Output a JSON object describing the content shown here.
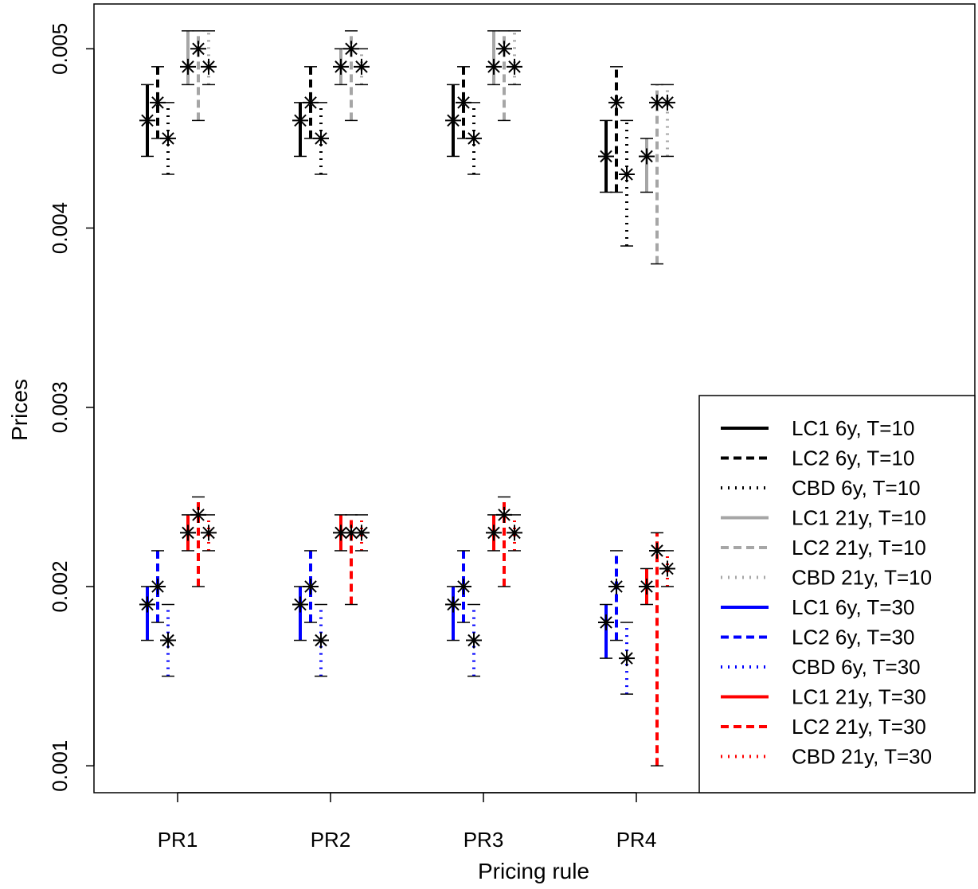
{
  "chart_data": {
    "type": "errorbar",
    "title": "",
    "xlabel": "Pricing rule",
    "ylabel": "Prices",
    "categories": [
      "PR1",
      "PR2",
      "PR3",
      "PR4"
    ],
    "ylim": [
      0.00085,
      0.00525
    ],
    "yticks": [
      {
        "value": 0.001,
        "label": "0.001"
      },
      {
        "value": 0.002,
        "label": "0.002"
      },
      {
        "value": 0.003,
        "label": "0.003"
      },
      {
        "value": 0.004,
        "label": "0.004"
      },
      {
        "value": 0.005,
        "label": "0.005"
      }
    ],
    "grid": false,
    "legend_position": "bottom-right",
    "series": [
      {
        "name": "LC1 6y, T=10",
        "color": "#000000",
        "style": "solid",
        "points": [
          {
            "low": 0.0044,
            "mid": 0.0046,
            "high": 0.0048
          },
          {
            "low": 0.0044,
            "mid": 0.0046,
            "high": 0.0047
          },
          {
            "low": 0.0044,
            "mid": 0.0046,
            "high": 0.0048
          },
          {
            "low": 0.0042,
            "mid": 0.0044,
            "high": 0.0046
          }
        ]
      },
      {
        "name": "LC2 6y, T=10",
        "color": "#000000",
        "style": "dashed",
        "points": [
          {
            "low": 0.0045,
            "mid": 0.0047,
            "high": 0.0049
          },
          {
            "low": 0.0045,
            "mid": 0.0047,
            "high": 0.0049
          },
          {
            "low": 0.0045,
            "mid": 0.0047,
            "high": 0.0049
          },
          {
            "low": 0.0042,
            "mid": 0.0047,
            "high": 0.0049
          }
        ]
      },
      {
        "name": "CBD 6y, T=10",
        "color": "#000000",
        "style": "dotted",
        "points": [
          {
            "low": 0.0043,
            "mid": 0.0045,
            "high": 0.0047
          },
          {
            "low": 0.0043,
            "mid": 0.0045,
            "high": 0.0047
          },
          {
            "low": 0.0043,
            "mid": 0.0045,
            "high": 0.0047
          },
          {
            "low": 0.0039,
            "mid": 0.0043,
            "high": 0.0046
          }
        ]
      },
      {
        "name": "LC1 21y, T=10",
        "color": "#a6a6a6",
        "style": "solid",
        "points": [
          {
            "low": 0.0048,
            "mid": 0.0049,
            "high": 0.0051
          },
          {
            "low": 0.0048,
            "mid": 0.0049,
            "high": 0.005
          },
          {
            "low": 0.0048,
            "mid": 0.0049,
            "high": 0.0051
          },
          {
            "low": 0.0042,
            "mid": 0.0044,
            "high": 0.0045
          }
        ]
      },
      {
        "name": "LC2 21y, T=10",
        "color": "#a6a6a6",
        "style": "dashed",
        "points": [
          {
            "low": 0.0046,
            "mid": 0.005,
            "high": 0.0051
          },
          {
            "low": 0.0046,
            "mid": 0.005,
            "high": 0.0051
          },
          {
            "low": 0.0046,
            "mid": 0.005,
            "high": 0.0051
          },
          {
            "low": 0.0038,
            "mid": 0.0047,
            "high": 0.0048
          }
        ]
      },
      {
        "name": "CBD 21y, T=10",
        "color": "#a6a6a6",
        "style": "dotted",
        "points": [
          {
            "low": 0.0048,
            "mid": 0.0049,
            "high": 0.0051
          },
          {
            "low": 0.0048,
            "mid": 0.0049,
            "high": 0.005
          },
          {
            "low": 0.0048,
            "mid": 0.0049,
            "high": 0.0051
          },
          {
            "low": 0.0044,
            "mid": 0.0047,
            "high": 0.0048
          }
        ]
      },
      {
        "name": "LC1 6y, T=30",
        "color": "#0000ff",
        "style": "solid",
        "points": [
          {
            "low": 0.0017,
            "mid": 0.0019,
            "high": 0.002
          },
          {
            "low": 0.0017,
            "mid": 0.0019,
            "high": 0.002
          },
          {
            "low": 0.0017,
            "mid": 0.0019,
            "high": 0.002
          },
          {
            "low": 0.0016,
            "mid": 0.0018,
            "high": 0.0019
          }
        ]
      },
      {
        "name": "LC2 6y, T=30",
        "color": "#0000ff",
        "style": "dashed",
        "points": [
          {
            "low": 0.0018,
            "mid": 0.002,
            "high": 0.0022
          },
          {
            "low": 0.0018,
            "mid": 0.002,
            "high": 0.0022
          },
          {
            "low": 0.0018,
            "mid": 0.002,
            "high": 0.0022
          },
          {
            "low": 0.0017,
            "mid": 0.002,
            "high": 0.0022
          }
        ]
      },
      {
        "name": "CBD 6y, T=30",
        "color": "#0000ff",
        "style": "dotted",
        "points": [
          {
            "low": 0.0015,
            "mid": 0.0017,
            "high": 0.0019
          },
          {
            "low": 0.0015,
            "mid": 0.0017,
            "high": 0.0019
          },
          {
            "low": 0.0015,
            "mid": 0.0017,
            "high": 0.0019
          },
          {
            "low": 0.0014,
            "mid": 0.0016,
            "high": 0.0018
          }
        ]
      },
      {
        "name": "LC1 21y, T=30",
        "color": "#ff0000",
        "style": "solid",
        "points": [
          {
            "low": 0.0022,
            "mid": 0.0023,
            "high": 0.0024
          },
          {
            "low": 0.0022,
            "mid": 0.0023,
            "high": 0.0024
          },
          {
            "low": 0.0022,
            "mid": 0.0023,
            "high": 0.0024
          },
          {
            "low": 0.0019,
            "mid": 0.002,
            "high": 0.0021
          }
        ]
      },
      {
        "name": "LC2 21y, T=30",
        "color": "#ff0000",
        "style": "dashed",
        "points": [
          {
            "low": 0.002,
            "mid": 0.0024,
            "high": 0.0025
          },
          {
            "low": 0.0019,
            "mid": 0.0023,
            "high": 0.0024
          },
          {
            "low": 0.002,
            "mid": 0.0024,
            "high": 0.0025
          },
          {
            "low": 0.001,
            "mid": 0.0022,
            "high": 0.0023
          }
        ]
      },
      {
        "name": "CBD 21y, T=30",
        "color": "#ff0000",
        "style": "dotted",
        "points": [
          {
            "low": 0.0022,
            "mid": 0.0023,
            "high": 0.0024
          },
          {
            "low": 0.0022,
            "mid": 0.0023,
            "high": 0.0024
          },
          {
            "low": 0.0022,
            "mid": 0.0023,
            "high": 0.0024
          },
          {
            "low": 0.002,
            "mid": 0.0021,
            "high": 0.0022
          }
        ]
      }
    ]
  }
}
